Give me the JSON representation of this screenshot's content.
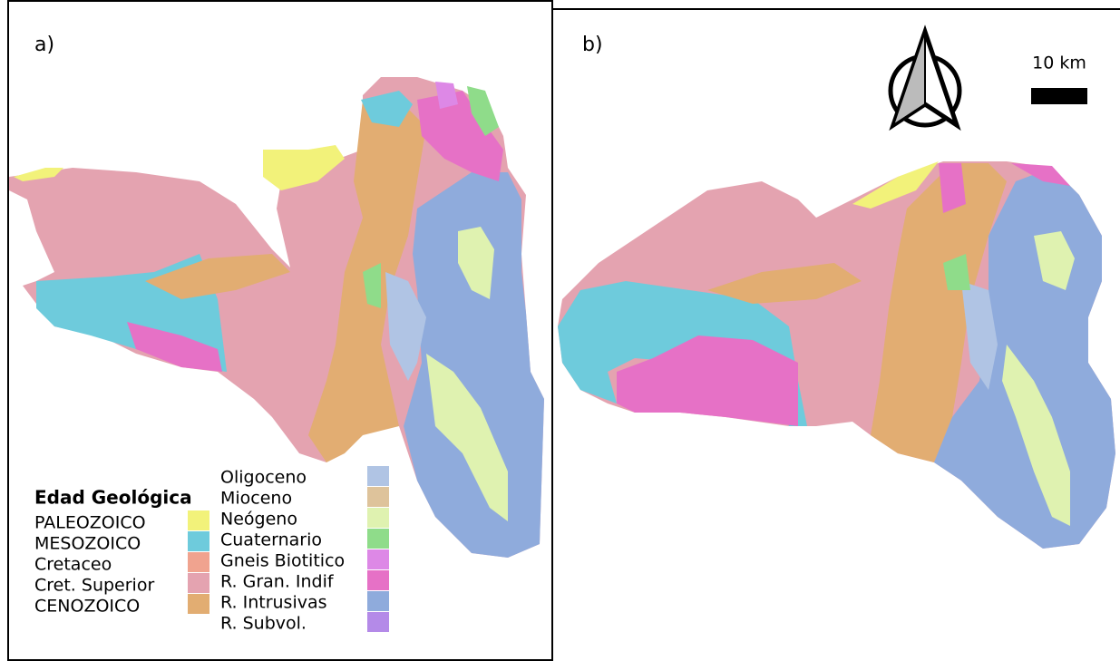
{
  "panels": [
    {
      "label": "a)"
    },
    {
      "label": "b)"
    }
  ],
  "scale_bar": {
    "label": "10 km"
  },
  "legend": {
    "title": "Edad Geológica",
    "groups": [
      [
        {
          "name": "PALEOZOICO",
          "color": "#f2f27a"
        },
        {
          "name": "MESOZOICO",
          "color": "#6ecbdc"
        },
        {
          "name": "Cretaceo",
          "color": "#f0a38f"
        },
        {
          "name": "Cret. Superior",
          "color": "#e4a3b0"
        },
        {
          "name": "CENOZOICO",
          "color": "#e2ad72"
        }
      ],
      [
        {
          "name": "Oligoceno",
          "color": "#b0c4e4"
        },
        {
          "name": "Mioceno",
          "color": "#dec39b"
        },
        {
          "name": "Neógeno",
          "color": "#dff2b0"
        },
        {
          "name": "Cuaternario",
          "color": "#8fdc8a"
        },
        {
          "name": "Gneis Biotitico",
          "color": "#dd88e6"
        },
        {
          "name": "R. Gran. Indif",
          "color": "#e671c6"
        },
        {
          "name": "R. Intrusivas",
          "color": "#8fabdc"
        },
        {
          "name": "R. Subvol.",
          "color": "#b48ae8"
        }
      ]
    ]
  }
}
